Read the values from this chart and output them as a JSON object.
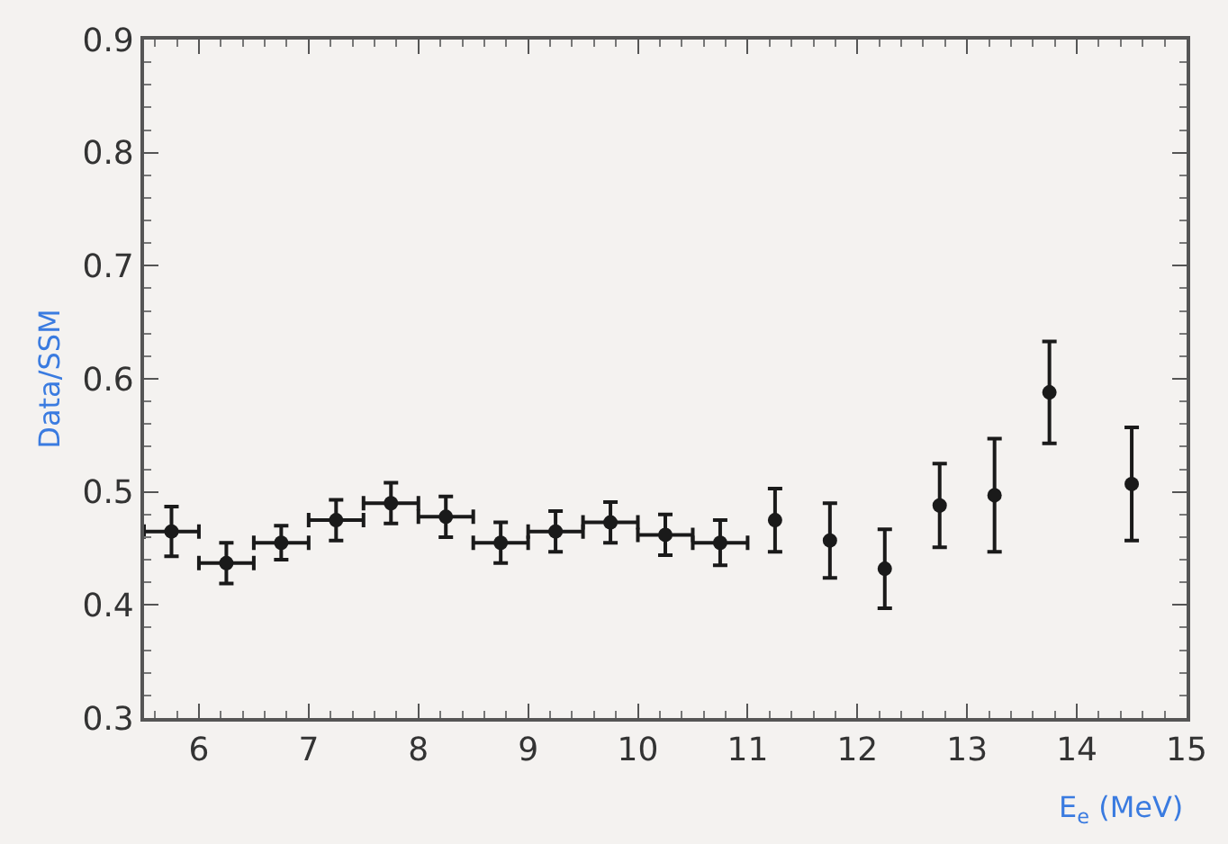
{
  "chart_data": {
    "type": "scatter",
    "xlabel": "E$_{e}$ (MeV)",
    "ylabel": "Data/SSM",
    "marker": "circle",
    "grid": false,
    "x": [
      5.75,
      6.25,
      6.75,
      7.25,
      7.75,
      8.25,
      8.75,
      9.25,
      9.75,
      10.25,
      10.75,
      11.25,
      11.75,
      12.25,
      12.75,
      13.25,
      13.75,
      14.5
    ],
    "series": [
      {
        "color": "#1a1a1a",
        "values": [
          0.465,
          0.437,
          0.455,
          0.475,
          0.49,
          0.478,
          0.455,
          0.465,
          0.473,
          0.462,
          0.455,
          0.475,
          0.457,
          0.432,
          0.488,
          0.497,
          0.588,
          0.507
        ],
        "errors": [
          0.022,
          0.018,
          0.015,
          0.018,
          0.018,
          0.018,
          0.018,
          0.018,
          0.018,
          0.018,
          0.02,
          0.028,
          0.033,
          0.035,
          0.037,
          0.05,
          0.045,
          0.05
        ],
        "xerrors": [
          0.25,
          0.25,
          0.25,
          0.25,
          0.25,
          0.25,
          0.25,
          0.25,
          0.25,
          0.25,
          0.25,
          null,
          null,
          null,
          null,
          null,
          null,
          null
        ]
      }
    ],
    "xlim": [
      5.5,
      15
    ],
    "xticks": [
      6,
      7,
      8,
      9,
      10,
      11,
      12,
      13,
      14,
      15
    ],
    "ylim": [
      0.3,
      0.9
    ],
    "yticks": [
      0.3,
      0.4,
      0.5,
      0.6,
      0.7,
      0.8,
      0.9
    ]
  }
}
